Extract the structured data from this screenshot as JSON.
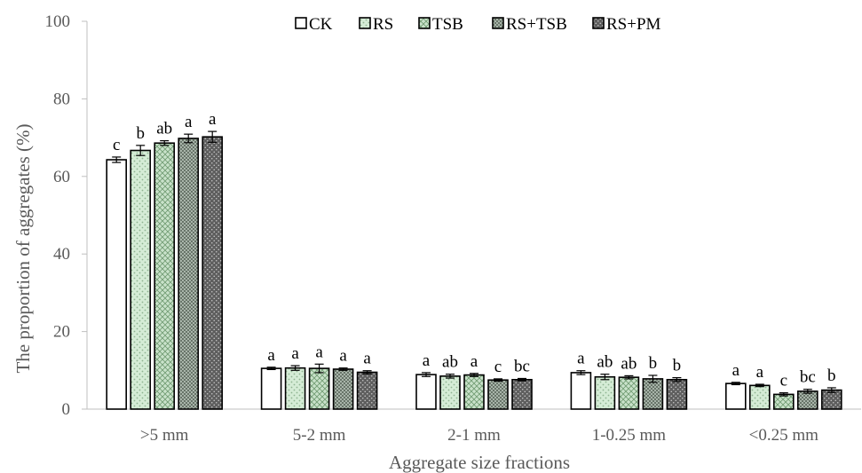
{
  "chart_data": {
    "type": "bar",
    "title": "",
    "xlabel": "Aggregate size fractions",
    "ylabel": "The proportion of aggregates (%)",
    "ylim": [
      0,
      100
    ],
    "yticks": [
      0,
      20,
      40,
      60,
      80,
      100
    ],
    "grid": false,
    "legend_position": "top",
    "categories": [
      ">5 mm",
      "5-2 mm",
      "2-1 mm",
      "1-0.25 mm",
      "<0.25 mm"
    ],
    "series": [
      {
        "name": "CK",
        "pattern": "solid-white",
        "color": "#ffffff",
        "values": [
          64.3,
          10.5,
          8.9,
          9.4,
          6.6
        ],
        "errors": [
          0.7,
          0.3,
          0.5,
          0.5,
          0.3
        ],
        "labels": [
          "c",
          "a",
          "a",
          "a",
          "a"
        ]
      },
      {
        "name": "RS",
        "pattern": "light-green-dots",
        "color": "#d5ecd6",
        "values": [
          66.7,
          10.6,
          8.5,
          8.3,
          6.1
        ],
        "errors": [
          1.3,
          0.6,
          0.5,
          0.7,
          0.3
        ],
        "labels": [
          "b",
          "a",
          "ab",
          "ab",
          "a"
        ]
      },
      {
        "name": "TSB",
        "pattern": "green-crosshatch",
        "color": "#c3ddc4",
        "values": [
          68.6,
          10.5,
          8.8,
          8.2,
          3.8
        ],
        "errors": [
          0.6,
          1.1,
          0.4,
          0.4,
          0.4
        ],
        "labels": [
          "ab",
          "a",
          "a",
          "ab",
          "c"
        ]
      },
      {
        "name": "RS+TSB",
        "pattern": "dense-grid",
        "color": "#9aa99b",
        "values": [
          69.8,
          10.3,
          7.5,
          7.8,
          4.6
        ],
        "errors": [
          1.1,
          0.3,
          0.3,
          0.9,
          0.5
        ],
        "labels": [
          "a",
          "a",
          "c",
          "b",
          "bc"
        ]
      },
      {
        "name": "RS+PM",
        "pattern": "dark-dots",
        "color": "#707070",
        "values": [
          70.2,
          9.5,
          7.6,
          7.6,
          4.9
        ],
        "errors": [
          1.4,
          0.4,
          0.3,
          0.5,
          0.6
        ],
        "labels": [
          "a",
          "a",
          "bc",
          "b",
          "b"
        ]
      }
    ]
  }
}
